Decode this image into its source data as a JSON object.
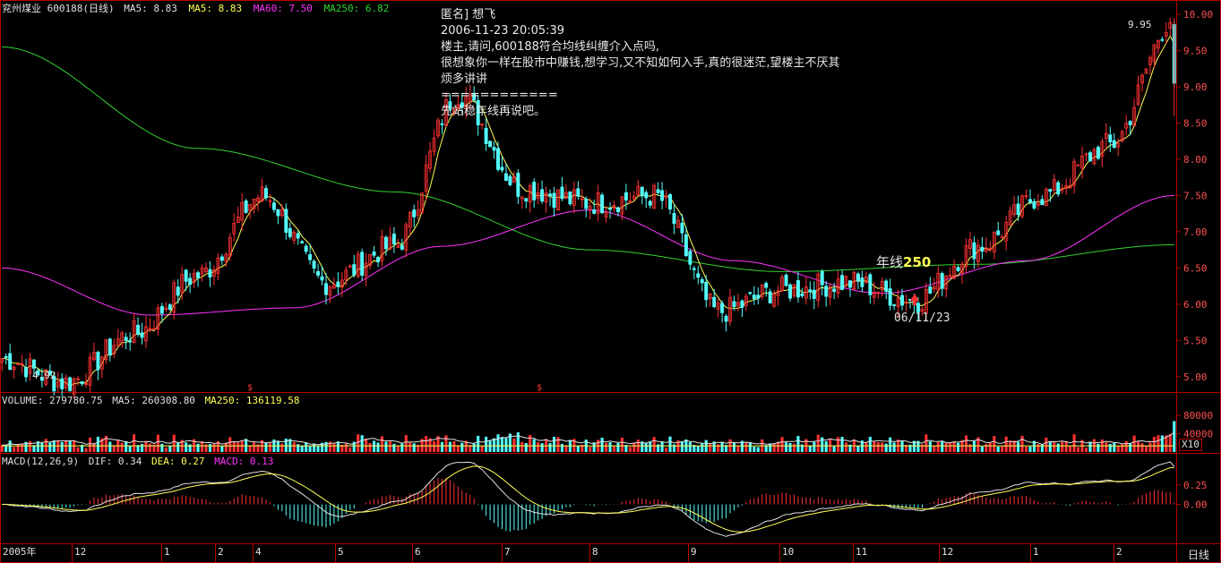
{
  "header": {
    "stock": "兖州煤业 600188(日线)",
    "ma5a": "MA5: 8.83",
    "ma5b": "MA5: 8.83",
    "ma60": "MA60: 7.50",
    "ma250": "MA250: 6.82"
  },
  "volume_header": {
    "label": "VOLUME: 279780.75",
    "ma5": "MA5: 260308.80",
    "ma250": "MA250: 136119.58"
  },
  "macd_header": {
    "label": "MACD(12,26,9)",
    "dif": "DIF: 0.34",
    "dea": "DEA: 0.27",
    "macd": "MACD: 0.13"
  },
  "note": {
    "title": "匿名]  想飞",
    "time": "2006-11-23  20:05:39",
    "q1": "楼主,请问,600188符合均线纠缠介入点吗,",
    "q2": "很想象你一样在股市中赚钱,想学习,又不知如何入手,真的很迷茫,望楼主不厌其",
    "q3": "烦多讲讲",
    "sep": "============",
    "answer": "先站稳年线再说吧。"
  },
  "annotations": {
    "year_line": "年线",
    "year_num": "250",
    "date": "06/11/23",
    "low": "4.92",
    "high": "9.95"
  },
  "period_label": "日线",
  "x10": "X10",
  "colors": {
    "up": "#ff3232",
    "down": "#54ffff",
    "ma5": "#ffff54",
    "ma60": "#ff32ff",
    "ma250": "#32d232",
    "axis": "#b40000",
    "tick": "#ff5050"
  },
  "chart_data": {
    "type": "candlestick",
    "price_axis": {
      "ticks": [
        "10.00",
        "9.50",
        "9.00",
        "8.50",
        "8.00",
        "7.50",
        "7.00",
        "6.50",
        "6.00",
        "5.50",
        "5.00"
      ],
      "ylim": [
        4.8,
        10.05
      ]
    },
    "volume_axis": {
      "ticks": [
        "80000",
        "40000"
      ],
      "ylim": [
        0,
        100000
      ]
    },
    "macd_axis": {
      "ticks": [
        "0.25",
        "0.00"
      ],
      "ylim": [
        -0.5,
        0.5
      ]
    },
    "x_labels": [
      "2005年",
      "12",
      "1",
      "2",
      "4",
      "5",
      "6",
      "7",
      "8",
      "9",
      "10",
      "11",
      "12",
      "1",
      "2"
    ],
    "price_key_points": [
      {
        "label": "2005-11",
        "price": 5.25
      },
      {
        "label": "2005-11-low",
        "price": 4.92
      },
      {
        "label": "2005-12",
        "price": 5.6
      },
      {
        "label": "2006-01",
        "price": 6.4
      },
      {
        "label": "2006-02",
        "price": 7.5
      },
      {
        "label": "2006-03",
        "price": 6.3
      },
      {
        "label": "2006-04",
        "price": 6.8
      },
      {
        "label": "2006-05-high",
        "price": 8.9
      },
      {
        "label": "2006-05",
        "price": 7.6
      },
      {
        "label": "2006-06",
        "price": 7.4
      },
      {
        "label": "2006-07",
        "price": 7.5
      },
      {
        "label": "2006-08",
        "price": 5.9
      },
      {
        "label": "2006-09",
        "price": 6.2
      },
      {
        "label": "2006-10",
        "price": 6.3
      },
      {
        "label": "06/11/23",
        "price": 6.05
      },
      {
        "label": "2006-12",
        "price": 6.8
      },
      {
        "label": "2007-01",
        "price": 7.5
      },
      {
        "label": "2007-02",
        "price": 8.2
      },
      {
        "label": "2007-02-high",
        "price": 9.95
      }
    ],
    "ma250_key_points": [
      {
        "label": "2005-12",
        "price": 9.55
      },
      {
        "label": "2006-05",
        "price": 8.15
      },
      {
        "label": "2006-07",
        "price": 7.55
      },
      {
        "label": "2006-09",
        "price": 6.75
      },
      {
        "label": "2006-11",
        "price": 6.45
      },
      {
        "label": "2007-01",
        "price": 6.55
      },
      {
        "label": "2007-02",
        "price": 6.82
      }
    ],
    "ma60_key_points": [
      {
        "label": "2005-11",
        "price": 6.5
      },
      {
        "label": "2006-01",
        "price": 5.85
      },
      {
        "label": "2006-03",
        "price": 5.95
      },
      {
        "label": "2006-05",
        "price": 6.8
      },
      {
        "label": "2006-07",
        "price": 7.3
      },
      {
        "label": "2006-09",
        "price": 6.6
      },
      {
        "label": "2006-11",
        "price": 6.15
      },
      {
        "label": "2007-01",
        "price": 6.6
      },
      {
        "label": "2007-02",
        "price": 7.5
      }
    ]
  }
}
